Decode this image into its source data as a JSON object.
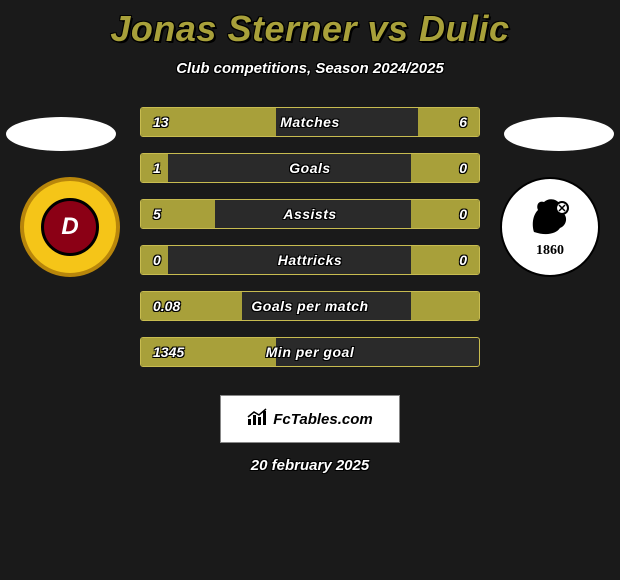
{
  "header": {
    "title": "Jonas Sterner vs Dulic",
    "subtitle": "Club competitions, Season 2024/2025"
  },
  "teams": {
    "left": {
      "initial": "D",
      "logo_bg": "#f5c518",
      "logo_border": "#b8860b",
      "inner_bg": "#8b0015"
    },
    "right": {
      "year": "1860",
      "logo_bg": "#ffffff"
    }
  },
  "stats": [
    {
      "label": "Matches",
      "left_val": "13",
      "right_val": "6",
      "left_pct": 40,
      "right_pct": 18
    },
    {
      "label": "Goals",
      "left_val": "1",
      "right_val": "0",
      "left_pct": 8,
      "right_pct": 20
    },
    {
      "label": "Assists",
      "left_val": "5",
      "right_val": "0",
      "left_pct": 22,
      "right_pct": 20
    },
    {
      "label": "Hattricks",
      "left_val": "0",
      "right_val": "0",
      "left_pct": 8,
      "right_pct": 20
    },
    {
      "label": "Goals per match",
      "left_val": "0.08",
      "right_val": "",
      "left_pct": 30,
      "right_pct": 20
    },
    {
      "label": "Min per goal",
      "left_val": "1345",
      "right_val": "",
      "left_pct": 40,
      "right_pct": 0
    }
  ],
  "colors": {
    "accent": "#a8a03a",
    "bar_border": "#c8bc50",
    "bar_bg": "#2a2a2a",
    "page_bg": "#1a1a1a",
    "text": "#ffffff"
  },
  "footer": {
    "brand": "FcTables.com",
    "date": "20 february 2025"
  }
}
